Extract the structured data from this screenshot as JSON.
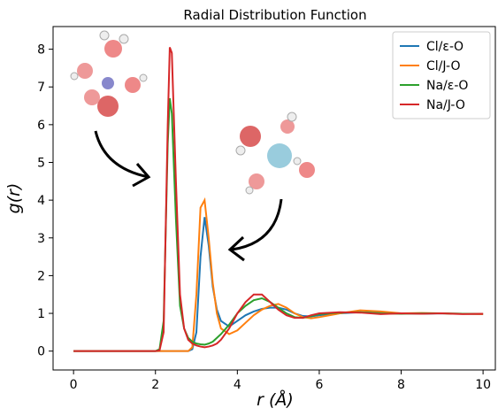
{
  "chart_data": {
    "type": "line",
    "title": "Radial Distribution Function",
    "x_label": "r (Å)",
    "y_label": "g(r)",
    "x": [
      0,
      0.5,
      1,
      1.5,
      2,
      2.1,
      2.2,
      2.3,
      2.35,
      2.4,
      2.5,
      2.6,
      2.7,
      2.8,
      2.9,
      3.0,
      3.1,
      3.2,
      3.3,
      3.4,
      3.5,
      3.6,
      3.8,
      4.0,
      4.2,
      4.4,
      4.6,
      4.8,
      5.0,
      5.2,
      5.4,
      5.6,
      5.8,
      6.0,
      6.5,
      7.0,
      7.5,
      8.0,
      8.5,
      9.0,
      9.5,
      10
    ],
    "series": [
      {
        "name": "Cl/ε-O",
        "color": "#1f77b4",
        "values": [
          0,
          0,
          0,
          0,
          0,
          0,
          0,
          0,
          0,
          0,
          0,
          0,
          0,
          0,
          0.05,
          0.5,
          2.5,
          3.55,
          2.8,
          1.7,
          1.1,
          0.8,
          0.65,
          0.8,
          0.95,
          1.05,
          1.12,
          1.15,
          1.15,
          1.1,
          1.0,
          0.93,
          0.92,
          0.95,
          1.0,
          1.03,
          1.02,
          1.0,
          0.99,
          1.0,
          0.99,
          0.98
        ]
      },
      {
        "name": "Cl/J-O",
        "color": "#ff7f0e",
        "values": [
          0,
          0,
          0,
          0,
          0,
          0,
          0,
          0,
          0,
          0,
          0,
          0,
          0,
          0,
          0.1,
          1.5,
          3.8,
          4.0,
          3.0,
          1.8,
          1.0,
          0.6,
          0.45,
          0.55,
          0.75,
          0.95,
          1.1,
          1.2,
          1.25,
          1.15,
          1.0,
          0.9,
          0.87,
          0.9,
          1.0,
          1.08,
          1.05,
          1.0,
          1.01,
          1.0,
          0.99,
          0.98
        ]
      },
      {
        "name": "Na/ε-O",
        "color": "#2ca02c",
        "values": [
          0,
          0,
          0,
          0,
          0,
          0.05,
          0.8,
          5.5,
          6.7,
          6.3,
          3.5,
          1.2,
          0.6,
          0.35,
          0.25,
          0.2,
          0.18,
          0.17,
          0.2,
          0.25,
          0.35,
          0.45,
          0.7,
          1.0,
          1.2,
          1.35,
          1.4,
          1.3,
          1.15,
          1.0,
          0.9,
          0.88,
          0.93,
          0.98,
          1.02,
          1.03,
          1.0,
          0.99,
          1.0,
          1.0,
          0.99,
          0.99
        ]
      },
      {
        "name": "Na/J-O",
        "color": "#d62728",
        "values": [
          0,
          0,
          0,
          0,
          0,
          0.02,
          0.5,
          6.0,
          8.05,
          7.9,
          4.5,
          1.5,
          0.6,
          0.3,
          0.2,
          0.15,
          0.12,
          0.1,
          0.12,
          0.15,
          0.2,
          0.3,
          0.6,
          1.0,
          1.3,
          1.5,
          1.5,
          1.3,
          1.1,
          0.95,
          0.88,
          0.88,
          0.95,
          1.0,
          1.03,
          1.02,
          0.98,
          1.0,
          0.99,
          1.0,
          0.98,
          0.99
        ]
      }
    ],
    "xlim": [
      -0.5,
      10.3
    ],
    "ylim": [
      -0.5,
      8.6
    ],
    "xticks": [
      0,
      2,
      4,
      6,
      8,
      10
    ],
    "yticks": [
      0,
      1,
      2,
      3,
      4,
      5,
      6,
      7,
      8
    ],
    "legend": "upper right"
  }
}
